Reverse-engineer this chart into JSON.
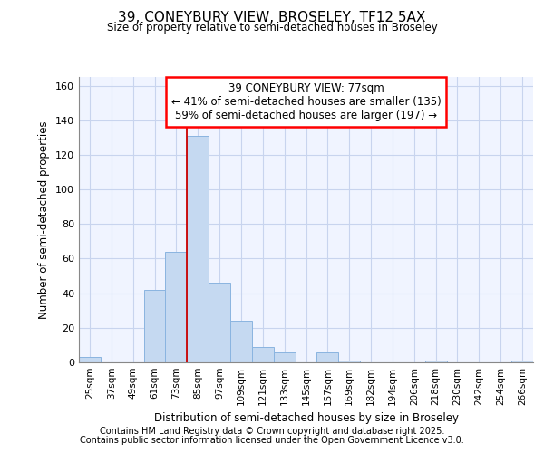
{
  "title": "39, CONEYBURY VIEW, BROSELEY, TF12 5AX",
  "subtitle": "Size of property relative to semi-detached houses in Broseley",
  "xlabel": "Distribution of semi-detached houses by size in Broseley",
  "ylabel": "Number of semi-detached properties",
  "categories": [
    "25sqm",
    "37sqm",
    "49sqm",
    "61sqm",
    "73sqm",
    "85sqm",
    "97sqm",
    "109sqm",
    "121sqm",
    "133sqm",
    "145sqm",
    "157sqm",
    "169sqm",
    "182sqm",
    "194sqm",
    "206sqm",
    "218sqm",
    "230sqm",
    "242sqm",
    "254sqm",
    "266sqm"
  ],
  "values": [
    3,
    0,
    0,
    42,
    64,
    131,
    46,
    24,
    9,
    6,
    0,
    6,
    1,
    0,
    0,
    0,
    1,
    0,
    0,
    0,
    1
  ],
  "bar_color": "#c5d9f1",
  "bar_edge_color": "#8ab4e0",
  "red_line_x": 4.5,
  "annotation_title": "39 CONEYBURY VIEW: 77sqm",
  "annotation_line1": "← 41% of semi-detached houses are smaller (135)",
  "annotation_line2": "59% of semi-detached houses are larger (197) →",
  "ylim": [
    0,
    165
  ],
  "yticks": [
    0,
    20,
    40,
    60,
    80,
    100,
    120,
    140,
    160
  ],
  "footer1": "Contains HM Land Registry data © Crown copyright and database right 2025.",
  "footer2": "Contains public sector information licensed under the Open Government Licence v3.0.",
  "bg_color": "#f0f4ff",
  "grid_color": "#c8d4ee",
  "fig_bg": "#ffffff"
}
